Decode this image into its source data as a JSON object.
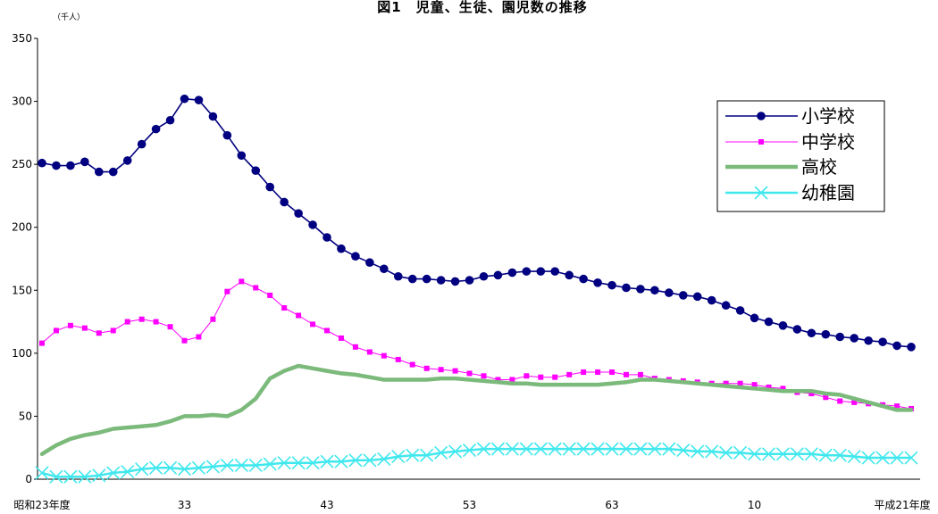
{
  "chart_data": {
    "type": "line",
    "title": "図1　児童、生徒、園児数の推移",
    "ylabel": "（千人）",
    "xlabel": "",
    "ylim": [
      0,
      350
    ],
    "y_ticks": [
      0,
      50,
      100,
      150,
      200,
      250,
      300,
      350
    ],
    "grid": false,
    "legend": "right",
    "x": [
      23,
      24,
      25,
      26,
      27,
      28,
      29,
      30,
      31,
      32,
      33,
      34,
      35,
      36,
      37,
      38,
      39,
      40,
      41,
      42,
      43,
      44,
      45,
      46,
      47,
      48,
      49,
      50,
      51,
      52,
      53,
      54,
      55,
      56,
      57,
      58,
      59,
      60,
      61,
      62,
      63,
      1,
      2,
      3,
      4,
      5,
      6,
      7,
      8,
      9,
      10,
      11,
      12,
      13,
      14,
      15,
      16,
      17,
      18,
      19,
      20,
      21
    ],
    "x_ticks": [
      {
        "index": 0,
        "label": "昭和23年度"
      },
      {
        "index": 10,
        "label": "33"
      },
      {
        "index": 20,
        "label": "43"
      },
      {
        "index": 30,
        "label": "53"
      },
      {
        "index": 40,
        "label": "63"
      },
      {
        "index": 50,
        "label": "10"
      },
      {
        "index": 61,
        "label": "平成21年度"
      }
    ],
    "series": [
      {
        "name": "小学校",
        "color": "#000080",
        "marker": "circle",
        "values": [
          251,
          249,
          249,
          252,
          244,
          244,
          253,
          266,
          278,
          285,
          302,
          301,
          288,
          273,
          257,
          245,
          232,
          220,
          211,
          202,
          192,
          183,
          177,
          172,
          167,
          161,
          159,
          159,
          158,
          157,
          158,
          161,
          162,
          164,
          165,
          165,
          165,
          162,
          159,
          156,
          154,
          152,
          151,
          150,
          148,
          146,
          145,
          142,
          138,
          134,
          128,
          125,
          122,
          119,
          116,
          115,
          113,
          112,
          110,
          109,
          106,
          105
        ]
      },
      {
        "name": "中学校",
        "color": "#FF00FF",
        "marker": "square",
        "values": [
          108,
          118,
          122,
          120,
          116,
          118,
          125,
          127,
          125,
          121,
          110,
          113,
          127,
          149,
          157,
          152,
          146,
          136,
          130,
          123,
          118,
          112,
          105,
          101,
          98,
          95,
          91,
          88,
          87,
          86,
          84,
          82,
          79,
          79,
          82,
          81,
          81,
          83,
          85,
          85,
          85,
          83,
          83,
          80,
          79,
          78,
          77,
          76,
          76,
          76,
          75,
          73,
          72,
          69,
          68,
          65,
          62,
          61,
          60,
          59,
          58,
          56
        ]
      },
      {
        "name": "高校",
        "color": "#7CBA7C",
        "marker": "none",
        "values": [
          20,
          27,
          32,
          35,
          37,
          40,
          41,
          42,
          43,
          46,
          50,
          50,
          51,
          50,
          55,
          64,
          80,
          86,
          90,
          88,
          86,
          84,
          83,
          81,
          79,
          79,
          79,
          79,
          80,
          80,
          79,
          78,
          77,
          76,
          76,
          75,
          75,
          75,
          75,
          75,
          76,
          77,
          79,
          79,
          78,
          77,
          76,
          75,
          74,
          73,
          72,
          71,
          70,
          70,
          70,
          68,
          67,
          64,
          61,
          58,
          55,
          55
        ]
      },
      {
        "name": "幼稚園",
        "color": "#40E8EE",
        "marker": "x",
        "values": [
          5,
          2,
          2,
          2,
          3,
          5,
          6,
          8,
          9,
          9,
          8,
          9,
          10,
          11,
          11,
          11,
          12,
          13,
          13,
          13,
          14,
          14,
          15,
          15,
          16,
          18,
          19,
          19,
          21,
          22,
          23,
          24,
          24,
          24,
          24,
          24,
          24,
          24,
          24,
          24,
          24,
          24,
          24,
          24,
          24,
          23,
          22,
          22,
          21,
          21,
          20,
          20,
          20,
          20,
          20,
          19,
          19,
          18,
          17,
          17,
          17,
          17
        ]
      }
    ]
  }
}
